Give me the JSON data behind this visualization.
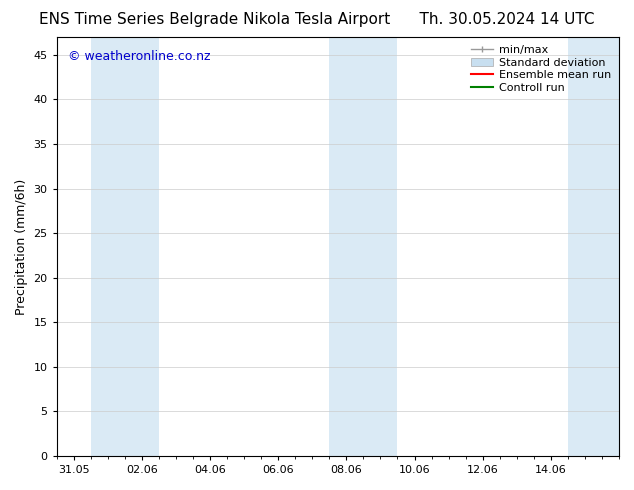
{
  "title_left": "ENS Time Series Belgrade Nikola Tesla Airport",
  "title_right": "Th. 30.05.2024 14 UTC",
  "ylabel": "Precipitation (mm/6h)",
  "xlabel_ticks": [
    "31.05",
    "02.06",
    "04.06",
    "06.06",
    "08.06",
    "10.06",
    "12.06",
    "14.06"
  ],
  "x_tick_positions": [
    0,
    2,
    4,
    6,
    8,
    10,
    12,
    14
  ],
  "xlim": [
    -0.5,
    16.0
  ],
  "ylim": [
    0,
    47
  ],
  "yticks": [
    0,
    5,
    10,
    15,
    20,
    25,
    30,
    35,
    40,
    45
  ],
  "shaded_bands": [
    {
      "x_start": 0.5,
      "x_end": 2.5
    },
    {
      "x_start": 7.5,
      "x_end": 9.5
    },
    {
      "x_start": 14.5,
      "x_end": 16.0
    }
  ],
  "band_color": "#daeaf5",
  "background_color": "#ffffff",
  "watermark": "© weatheronline.co.nz",
  "watermark_color": "#0000cc",
  "legend_items": [
    {
      "label": "min/max",
      "color": "#999999",
      "style": "minmax"
    },
    {
      "label": "Standard deviation",
      "color": "#c8dff0",
      "style": "patch"
    },
    {
      "label": "Ensemble mean run",
      "color": "#ff0000",
      "style": "line"
    },
    {
      "label": "Controll run",
      "color": "#008000",
      "style": "line"
    }
  ],
  "title_fontsize": 11,
  "ylabel_fontsize": 9,
  "tick_fontsize": 8,
  "watermark_fontsize": 9,
  "legend_fontsize": 8,
  "grid_color": "#cccccc",
  "grid_linewidth": 0.5,
  "spine_color": "#000000",
  "spine_linewidth": 0.8
}
